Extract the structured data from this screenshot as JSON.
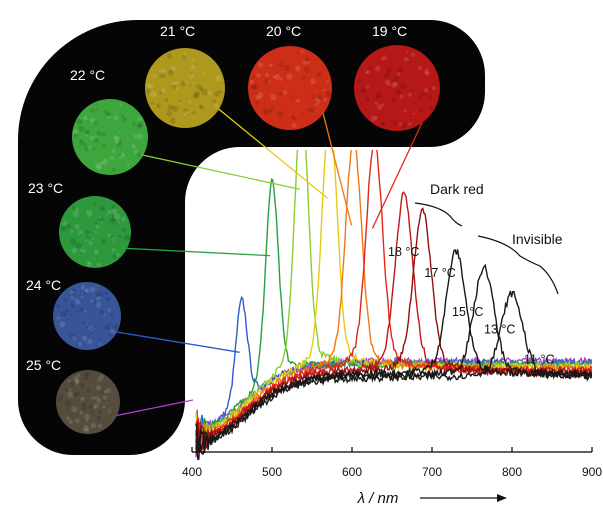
{
  "chart_data": {
    "type": "line",
    "title": "",
    "xlabel": "λ / nm",
    "ylabel": "",
    "xlim": [
      400,
      900
    ],
    "xticks": [
      400,
      500,
      600,
      700,
      800,
      900
    ],
    "grid": false,
    "series": [
      {
        "temp": "25 °C",
        "peak_nm": null,
        "peak_height": 0,
        "color": "#b040d0"
      },
      {
        "temp": "24 °C",
        "peak_nm": 462,
        "peak_height": 0.35,
        "color": "#2a5cd0"
      },
      {
        "temp": "23 °C",
        "peak_nm": 500,
        "peak_height": 0.67,
        "color": "#28a040"
      },
      {
        "temp": "22 °C",
        "peak_nm": 537,
        "peak_height": 0.89,
        "color": "#8ccc30"
      },
      {
        "temp": "21 °C",
        "peak_nm": 572,
        "peak_height": 0.86,
        "color": "#e4cc10"
      },
      {
        "temp": "20 °C",
        "peak_nm": 602,
        "peak_height": 0.77,
        "color": "#f07818"
      },
      {
        "temp": "19 °C",
        "peak_nm": 628,
        "peak_height": 0.76,
        "color": "#e02818"
      },
      {
        "temp": "18 °C",
        "peak_nm": 665,
        "peak_height": 0.59,
        "color": "#c01818"
      },
      {
        "temp": "17 °C",
        "peak_nm": 688,
        "peak_height": 0.54,
        "color": "#901010"
      },
      {
        "temp": "15 °C",
        "peak_nm": 730,
        "peak_height": 0.41,
        "color": "#181818"
      },
      {
        "temp": "13 °C",
        "peak_nm": 765,
        "peak_height": 0.36,
        "color": "#181818"
      },
      {
        "temp": "11 °C",
        "peak_nm": 800,
        "peak_height": 0.28,
        "color": "#181818"
      }
    ],
    "annotations": {
      "dark_red": "Dark red",
      "invisible": "Invisible",
      "arrow": "→"
    }
  },
  "samples": [
    {
      "label": "19 °C",
      "color": "#c01818"
    },
    {
      "label": "20 °C",
      "color": "#d83018"
    },
    {
      "label": "21 °C",
      "color": "#b8a020"
    },
    {
      "label": "22 °C",
      "color": "#40b040"
    },
    {
      "label": "23 °C",
      "color": "#30a040"
    },
    {
      "label": "24 °C",
      "color": "#3a5aa0"
    },
    {
      "label": "25 °C",
      "color": "#5a5040"
    }
  ]
}
